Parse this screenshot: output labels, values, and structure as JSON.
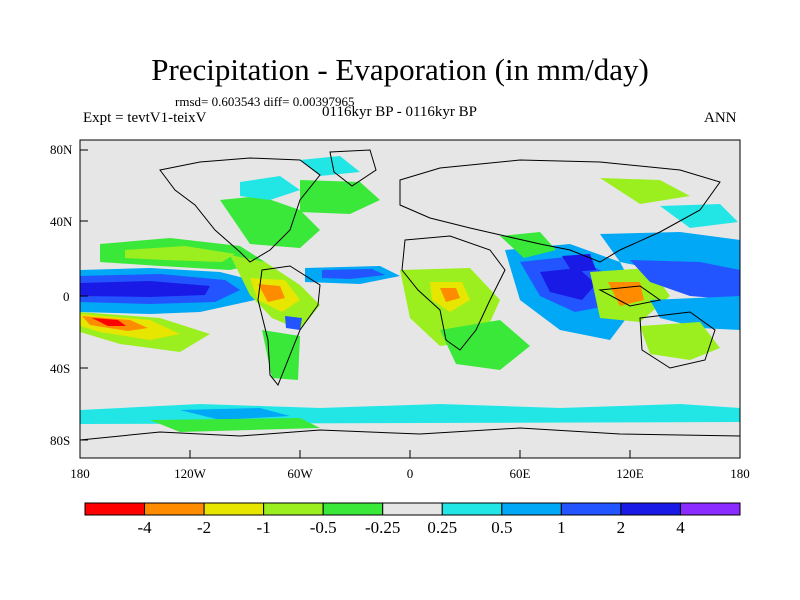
{
  "header": {
    "title": "Precipitation - Evaporation (in mm/day)",
    "stats": "rmsd= 0.603543 diff= 0.00397965",
    "experiment": "Expt = tevtV1-teixV",
    "period": "0116kyr BP - 0116kyr BP",
    "season": "ANN"
  },
  "map": {
    "projection": "cylindrical-equidistant",
    "lon_range": [
      -180,
      180
    ],
    "lat_range": [
      -90,
      90
    ],
    "lat_ticks": [
      "80N",
      "40N",
      "0",
      "40S",
      "80S"
    ],
    "lon_ticks": [
      "180",
      "120W",
      "60W",
      "0",
      "60E",
      "120E",
      "180"
    ],
    "background_color": "#e6e6e6",
    "coastline_color": "#000000"
  },
  "colorbar": {
    "labels": [
      "-4",
      "-2",
      "-1",
      "-0.5",
      "-0.25",
      "0.25",
      "0.5",
      "1",
      "2",
      "4"
    ],
    "colors": [
      "#ff0000",
      "#ff8c00",
      "#e6e600",
      "#9bef1f",
      "#3ae83a",
      "#e6e6e6",
      "#22e6e6",
      "#00a8f5",
      "#2255ff",
      "#1a1ae6",
      "#8c2bff"
    ]
  }
}
